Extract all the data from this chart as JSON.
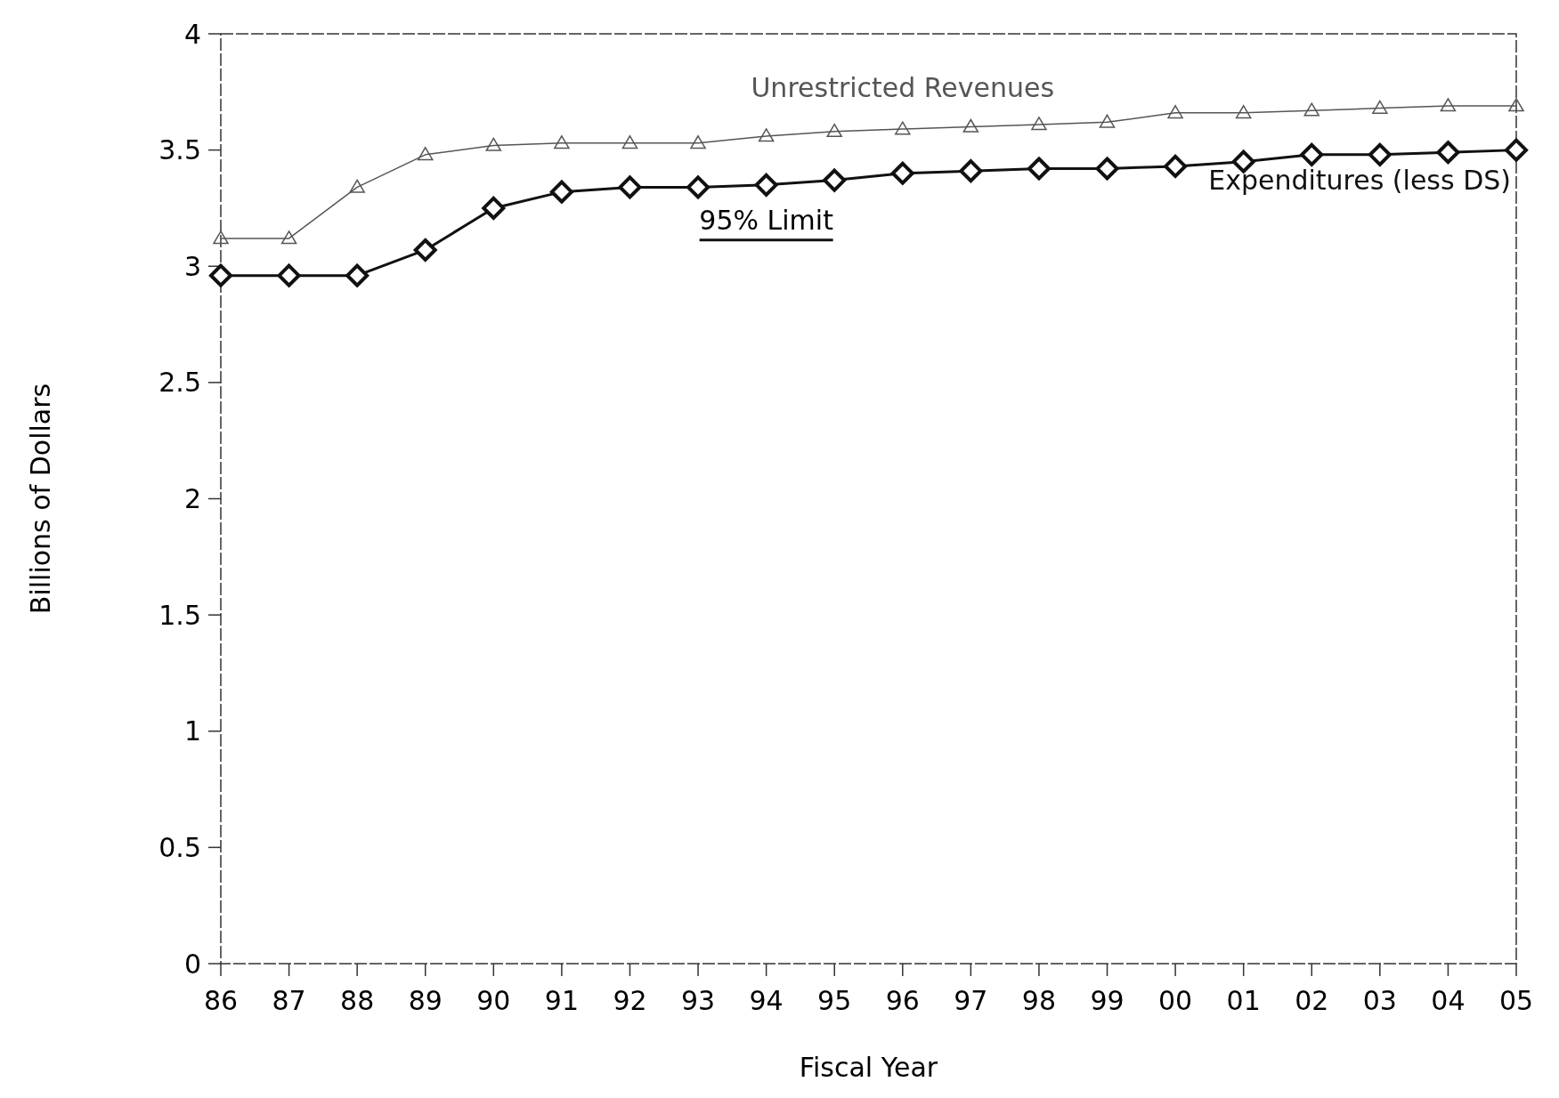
{
  "chart_data": {
    "type": "line",
    "xlabel": "Fiscal Year",
    "ylabel": "Billions of Dollars",
    "categories": [
      "86",
      "87",
      "88",
      "89",
      "90",
      "91",
      "92",
      "93",
      "94",
      "95",
      "96",
      "97",
      "98",
      "99",
      "00",
      "01",
      "02",
      "03",
      "04",
      "05"
    ],
    "series": [
      {
        "name": "Unrestricted Revenues",
        "color": "#555555",
        "marker": "triangle",
        "values": [
          3.12,
          3.12,
          3.34,
          3.48,
          3.52,
          3.53,
          3.53,
          3.53,
          3.56,
          3.58,
          3.59,
          3.6,
          3.61,
          3.62,
          3.66,
          3.66,
          3.67,
          3.68,
          3.69,
          3.69
        ]
      },
      {
        "name": "Expenditures (less DS)",
        "color": "#111111",
        "marker": "diamond",
        "values": [
          2.96,
          2.96,
          2.96,
          3.07,
          3.25,
          3.32,
          3.34,
          3.34,
          3.35,
          3.37,
          3.4,
          3.41,
          3.42,
          3.42,
          3.43,
          3.45,
          3.48,
          3.48,
          3.49,
          3.5
        ]
      }
    ],
    "annotations": [
      "95% Limit"
    ],
    "ylim": [
      0,
      4
    ],
    "yticks": [
      0,
      0.5,
      1,
      1.5,
      2,
      2.5,
      3,
      3.5,
      4
    ],
    "grid": false,
    "legend": false
  }
}
